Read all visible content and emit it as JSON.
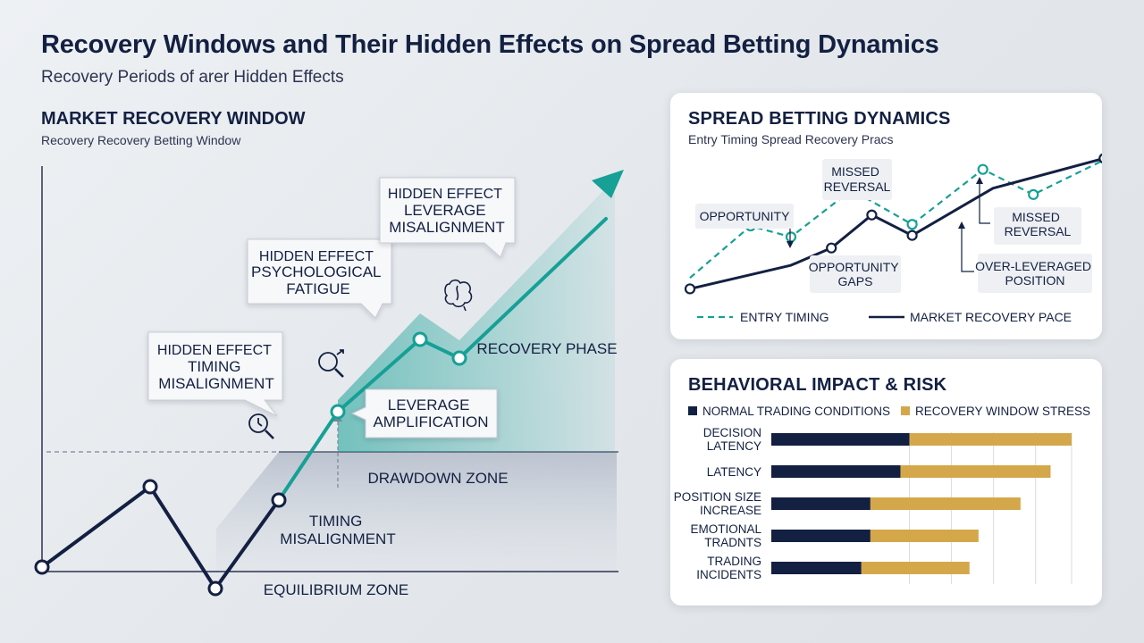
{
  "header": {
    "title": "Recovery Windows and Their Hidden Effects on Spread Betting Dynamics",
    "subtitle": "Recovery Periods of arer Hidden Effects"
  },
  "colors": {
    "navy": "#132042",
    "teal": "#16a096",
    "gold": "#d4a84a",
    "zone_fill": "#c9cfd9"
  },
  "chart_data": [
    {
      "type": "line",
      "title": "MARKET RECOVERY WINDOW",
      "subtitle": "Recovery Recovery Betting Window",
      "series": [
        {
          "values": [
            0,
            3,
            -0.8,
            2.5,
            5.8,
            8.5,
            7.8,
            13
          ]
        }
      ],
      "x": [
        0,
        1,
        2,
        3,
        4,
        5,
        6,
        7
      ],
      "ylim": [
        0,
        15
      ],
      "zones": [
        {
          "label": "DRAWDOWN ZONE"
        },
        {
          "label": "EQUILIBRIUM ZONE"
        },
        {
          "label": "RECOVERY PHASE"
        }
      ],
      "annotations": [
        {
          "lines": [
            "HIDDEN EFFECT",
            "TIMING",
            "MISALIGNMENT"
          ]
        },
        {
          "lines": [
            "HIDDEN EFFECT",
            "PSYCHOLOGICAL",
            "FATIGUE"
          ]
        },
        {
          "lines": [
            "HIDDEN EFFECT",
            "LEVERAGE",
            "MISALIGNMENT"
          ]
        },
        {
          "lines": [
            "LEVERAGE",
            "AMPLIFICATION"
          ]
        },
        {
          "lines": [
            "TIMING",
            "MISALIGNMENT"
          ]
        }
      ],
      "icons": [
        "magnifier-clock-icon",
        "magnifier-arrow-icon",
        "brain-icon"
      ]
    },
    {
      "type": "line",
      "title": "SPREAD BETTING DYNAMICS",
      "subtitle": "Entry Timing Spread Recovery Pracs",
      "legend_position": "bottom",
      "series": [
        {
          "name": "ENTRY TIMING",
          "style": "dashed",
          "color": "#16a096",
          "values": [
            1.3,
            4.6,
            3.9,
            6.9,
            4.7,
            8.2,
            6.6,
            8.8
          ]
        },
        {
          "name": "MARKET RECOVERY PACE",
          "style": "solid",
          "color": "#132042",
          "values": [
            0.6,
            2.1,
            3.2,
            5.3,
            4.0,
            7.0,
            8.9
          ]
        }
      ],
      "x_entry": [
        0,
        1.2,
        2,
        3.2,
        4.4,
        5.8,
        6.8,
        8.2
      ],
      "x_market": [
        0,
        2,
        2.8,
        3.6,
        4.4,
        6,
        8.2
      ],
      "ylim": [
        0,
        10
      ],
      "annotations": [
        {
          "lines": [
            "OPPORTUNITY"
          ]
        },
        {
          "lines": [
            "MISSED",
            "REVERSAL"
          ]
        },
        {
          "lines": [
            "OPPORTUNITY",
            "GAPS"
          ]
        },
        {
          "lines": [
            "MISSED",
            "REVERSAL"
          ]
        },
        {
          "lines": [
            "OVER-LEVERAGED",
            "POSITION"
          ]
        }
      ]
    },
    {
      "type": "bar",
      "orientation": "horizontal",
      "stacked": true,
      "title": "BEHAVIORAL IMPACT & RISK",
      "legend_position": "top",
      "categories": [
        [
          "DECISION",
          "LATENCY"
        ],
        [
          "LATENCY"
        ],
        [
          "POSITION SIZE",
          "INCREASE"
        ],
        [
          "EMOTIONAL",
          "TRADNTS"
        ],
        [
          "TRADING",
          "INCIDENTS"
        ]
      ],
      "series": [
        {
          "name": "NORMAL TRADING CONDITIONS",
          "color": "#132042",
          "values": [
            46,
            43,
            33,
            33,
            30
          ]
        },
        {
          "name": "RECOVERY WINDOW STRESS",
          "color": "#d4a84a",
          "values": [
            54,
            50,
            50,
            36,
            36
          ]
        }
      ],
      "xlim": [
        0,
        100
      ],
      "grid": true
    }
  ]
}
